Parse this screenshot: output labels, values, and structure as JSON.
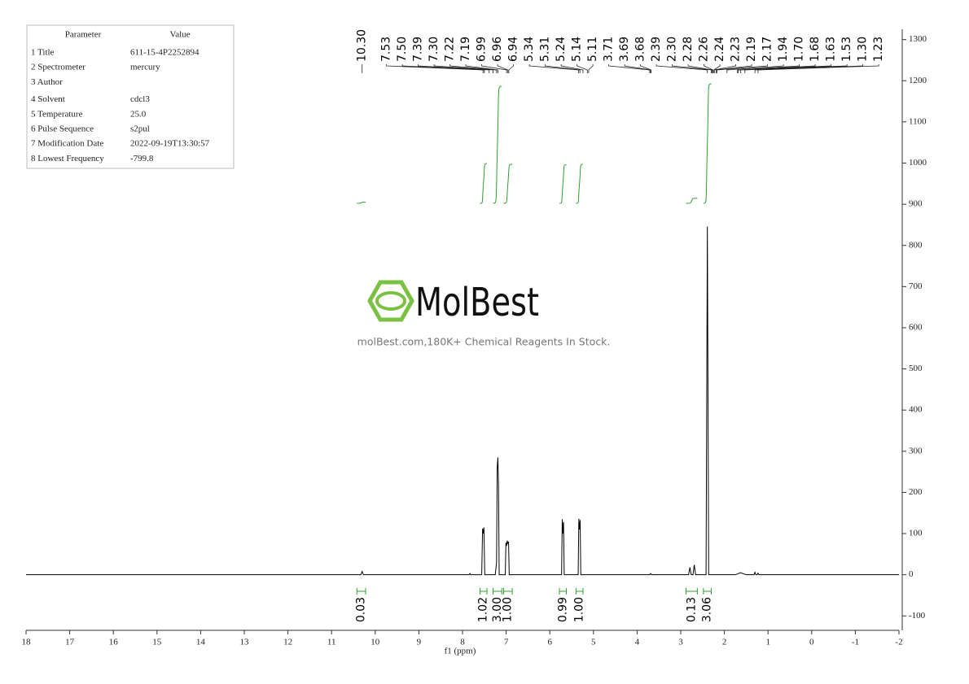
{
  "parameters": {
    "header": [
      "Parameter",
      "Value"
    ],
    "rows": [
      [
        "1 Title",
        "611-15-4P2252894"
      ],
      [
        "2 Spectrometer",
        "mercury"
      ],
      [
        "3 Author"
      ],
      [
        "4 Solvent",
        "cdcl3"
      ],
      [
        "5 Temperature",
        "25.0"
      ],
      [
        "6 Pulse Sequence",
        "s2pul"
      ],
      [
        "7 Modification Date",
        "2022-09-19T13:30:57"
      ],
      [
        "8 Lowest Frequency",
        "-799.8"
      ]
    ]
  },
  "watermark": {
    "brand": "MolBest",
    "tagline": "molBest.com,180K+ Chemical Reagents In Stock."
  },
  "chart_data": {
    "type": "line",
    "x_label": "f1 (ppm)",
    "color": "#000000",
    "integral_color": "#2ca02c",
    "xlim": [
      18,
      -2
    ],
    "xticks": [
      18,
      17,
      16,
      15,
      14,
      13,
      12,
      11,
      10,
      9,
      8,
      7,
      6,
      5,
      4,
      3,
      2,
      1,
      0,
      -1,
      -2
    ],
    "ylim": [
      -135,
      1325
    ],
    "yticks": [
      -100,
      0,
      100,
      200,
      300,
      400,
      500,
      600,
      700,
      800,
      900,
      1000,
      1100,
      1200,
      1300
    ],
    "x": [
      18,
      10.33,
      10.3,
      10.27,
      7.85,
      7.83,
      7.81,
      7.56,
      7.54,
      7.525,
      7.51,
      7.49,
      7.25,
      7.22,
      7.205,
      7.19,
      7.175,
      7.16,
      7.02,
      7.005,
      6.99,
      6.975,
      6.96,
      6.945,
      6.93,
      5.73,
      5.715,
      5.7,
      5.685,
      5.67,
      5.35,
      5.335,
      5.32,
      5.305,
      5.29,
      3.71,
      3.69,
      3.67,
      2.82,
      2.79,
      2.76,
      2.72,
      2.69,
      2.66,
      2.42,
      2.39,
      2.36,
      1.75,
      1.63,
      1.5,
      1.32,
      1.3,
      1.28,
      1.25,
      1.23,
      1.21,
      -2
    ],
    "values": [
      0,
      0,
      8,
      0,
      0,
      3,
      0,
      0,
      112,
      100,
      115,
      0,
      0,
      30,
      260,
      285,
      220,
      0,
      0,
      78,
      70,
      83,
      75,
      80,
      0,
      0,
      135,
      100,
      128,
      0,
      0,
      136,
      110,
      133,
      0,
      0,
      3,
      0,
      0,
      18,
      0,
      0,
      24,
      0,
      0,
      846,
      0,
      0,
      5,
      0,
      0,
      6,
      0,
      0,
      4,
      0,
      0
    ],
    "peak_labels": [
      {
        "value": 10.3,
        "label": "10.30"
      },
      {
        "value": 7.53,
        "label": "7.53"
      },
      {
        "value": 7.5,
        "label": "7.50"
      },
      {
        "value": 7.39,
        "label": "7.39"
      },
      {
        "value": 7.3,
        "label": "7.30"
      },
      {
        "value": 7.22,
        "label": "7.22"
      },
      {
        "value": 7.19,
        "label": "7.19"
      },
      {
        "value": 6.99,
        "label": "6.99"
      },
      {
        "value": 6.96,
        "label": "6.96"
      },
      {
        "value": 6.94,
        "label": "6.94"
      },
      {
        "value": 5.34,
        "label": "5.34"
      },
      {
        "value": 5.31,
        "label": "5.31"
      },
      {
        "value": 5.24,
        "label": "5.24"
      },
      {
        "value": 5.14,
        "label": "5.14"
      },
      {
        "value": 5.11,
        "label": "5.11"
      },
      {
        "value": 3.71,
        "label": "3.71"
      },
      {
        "value": 3.69,
        "label": "3.69"
      },
      {
        "value": 3.68,
        "label": "3.68"
      },
      {
        "value": 2.39,
        "label": "2.39"
      },
      {
        "value": 2.3,
        "label": "2.30"
      },
      {
        "value": 2.28,
        "label": "2.28"
      },
      {
        "value": 2.26,
        "label": "2.26"
      },
      {
        "value": 2.24,
        "label": "2.24"
      },
      {
        "value": 2.23,
        "label": "2.23"
      },
      {
        "value": 2.19,
        "label": "2.19"
      },
      {
        "value": 2.17,
        "label": "2.17"
      },
      {
        "value": 1.94,
        "label": "1.94"
      },
      {
        "value": 1.7,
        "label": "1.70"
      },
      {
        "value": 1.68,
        "label": "1.68"
      },
      {
        "value": 1.63,
        "label": "1.63"
      },
      {
        "value": 1.53,
        "label": "1.53"
      },
      {
        "value": 1.3,
        "label": "1.30"
      },
      {
        "value": 1.23,
        "label": "1.23"
      }
    ],
    "integrals": {
      "ranges": [
        [
          10.42,
          10.22
        ],
        [
          7.6,
          7.44
        ],
        [
          7.3,
          7.1
        ],
        [
          7.06,
          6.86
        ],
        [
          5.78,
          5.62
        ],
        [
          5.4,
          5.24
        ],
        [
          2.88,
          2.62
        ],
        [
          2.48,
          2.3
        ]
      ],
      "values": [
        0.03,
        1.02,
        3,
        1,
        0.99,
        1,
        0.13,
        3.06
      ],
      "value_labels": [
        "0.03",
        "1.02",
        "3.00",
        "1.00",
        "0.99",
        "1.00",
        "0.13",
        "3.06"
      ]
    }
  }
}
